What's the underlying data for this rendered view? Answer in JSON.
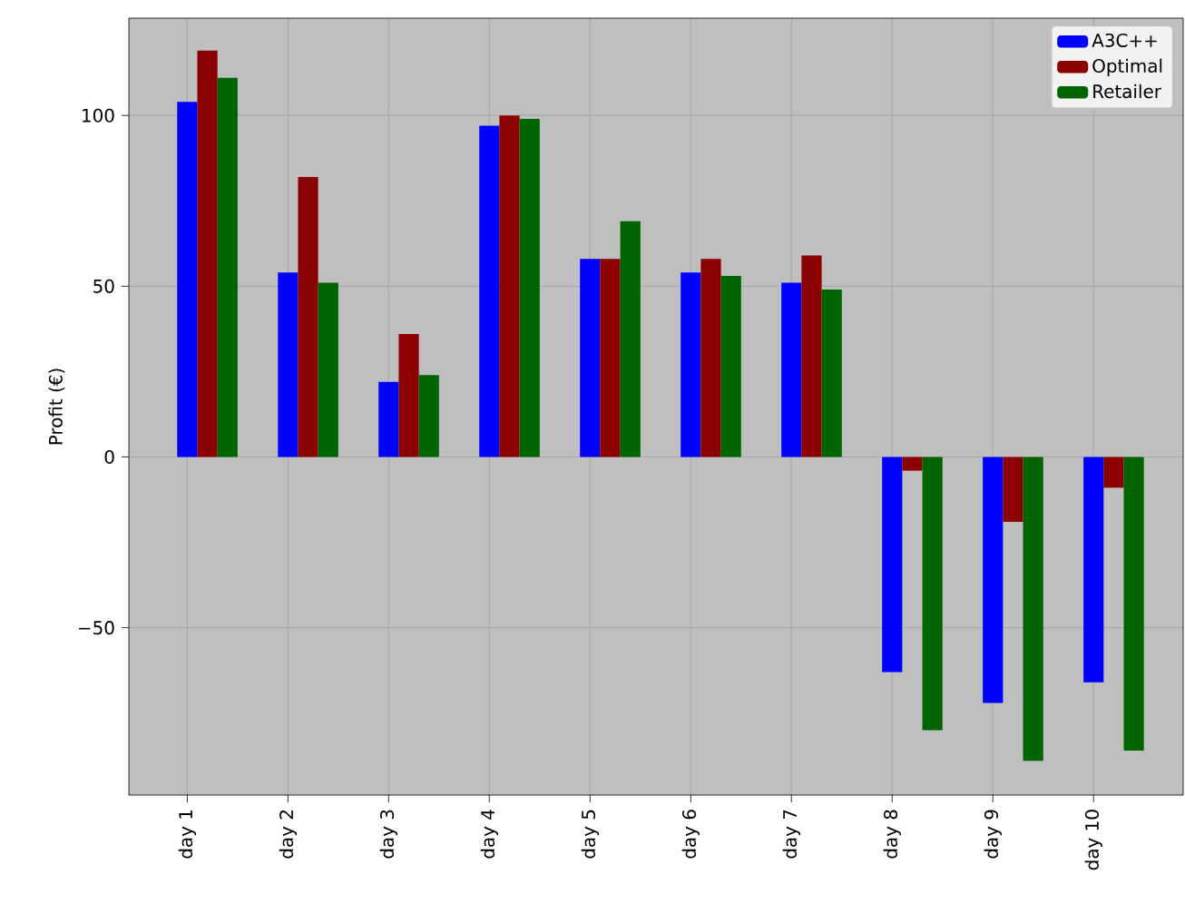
{
  "chart_data": {
    "type": "bar",
    "ylabel": "Profit (€)",
    "categories": [
      "day 1",
      "day 2",
      "day 3",
      "day 4",
      "day 5",
      "day 6",
      "day 7",
      "day 8",
      "day 9",
      "day 10"
    ],
    "series": [
      {
        "name": "A3C++",
        "color": "#0000ff",
        "values": [
          104,
          54,
          22,
          97,
          58,
          54,
          51,
          -63,
          -72,
          -66
        ]
      },
      {
        "name": "Optimal",
        "color": "#8b0000",
        "values": [
          119,
          82,
          36,
          100,
          58,
          58,
          59,
          -4,
          -19,
          -9
        ]
      },
      {
        "name": "Retailer",
        "color": "#006400",
        "values": [
          111,
          51,
          24,
          99,
          69,
          53,
          49,
          -80,
          -89,
          -86
        ]
      }
    ],
    "ylim": [
      -99,
      128.5
    ],
    "yticks": [
      {
        "value": -50,
        "label": "−50"
      },
      0,
      50,
      100
    ],
    "grid": true,
    "legend": "top right"
  }
}
